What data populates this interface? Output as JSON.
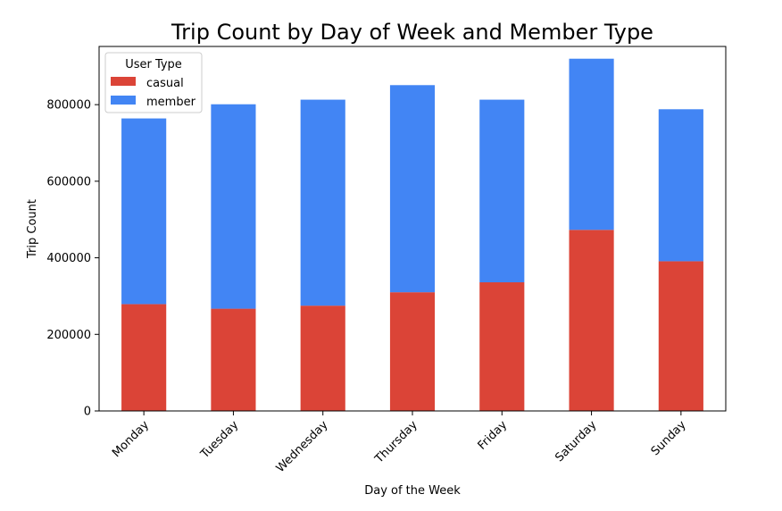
{
  "chart_data": {
    "type": "bar",
    "stacked": true,
    "title": "Trip Count by Day of Week and Member Type",
    "xlabel": "Day of the Week",
    "ylabel": "Trip Count",
    "categories": [
      "Monday",
      "Tuesday",
      "Wednesday",
      "Thursday",
      "Friday",
      "Saturday",
      "Sunday"
    ],
    "series": [
      {
        "name": "casual",
        "color": "#db4437",
        "values": [
          279000,
          267000,
          275000,
          310000,
          336000,
          473000,
          391000
        ]
      },
      {
        "name": "member",
        "color": "#4285f4",
        "values": [
          485000,
          534000,
          538000,
          541000,
          477000,
          447000,
          397000
        ]
      }
    ],
    "ylim": [
      0,
      952000
    ],
    "yticks": [
      0,
      200000,
      400000,
      600000,
      800000
    ],
    "ytick_labels": [
      "0",
      "200000",
      "400000",
      "600000",
      "800000"
    ],
    "legend": {
      "title": "User Type",
      "position": "top-left"
    },
    "grid": false
  }
}
